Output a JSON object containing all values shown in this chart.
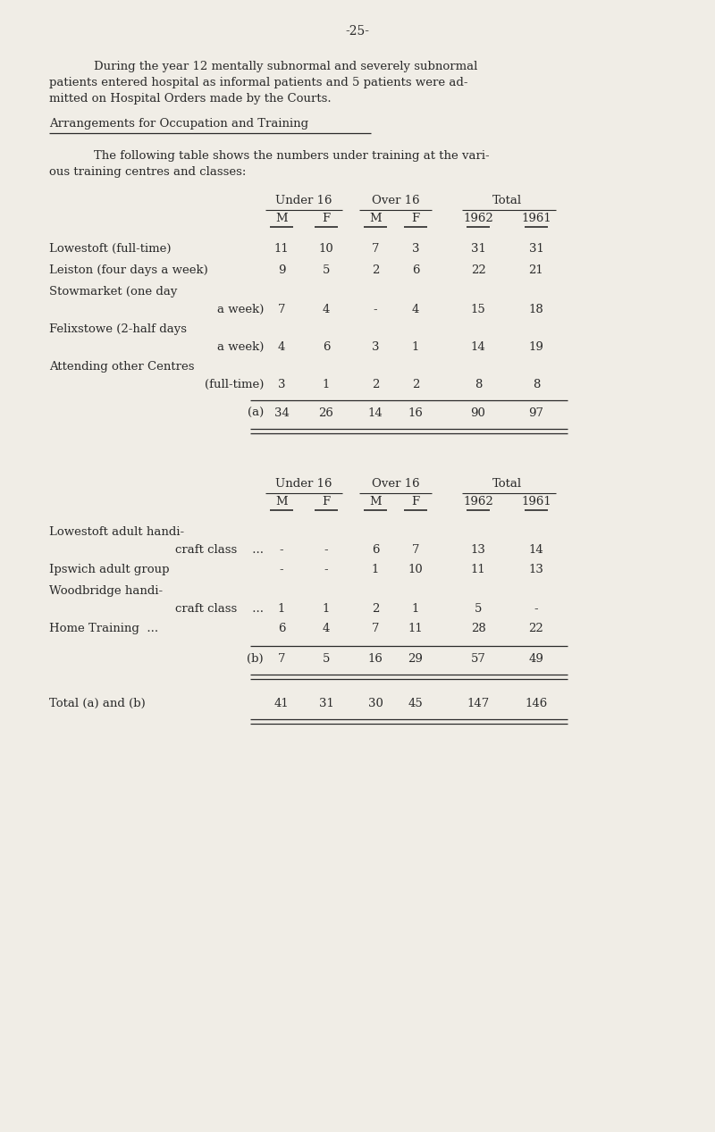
{
  "page_number": "-25-",
  "bg_color": "#f0ede6",
  "text_color": "#2a2a2a",
  "p1_line1": "During the year 12 mentally subnormal and severely subnormal",
  "p1_line2": "patients entered hospital as informal patients and 5 patients were ad-",
  "p1_line3": "mitted on Hospital Orders made by the Courts.",
  "section_heading": "Arrangements for Occupation and Training",
  "p2_line1": "The following table shows the numbers under training at the vari-",
  "p2_line2": "ous training centres and classes:",
  "col_headers_top": [
    "Under 16",
    "Over 16",
    "Total"
  ],
  "col_headers_sub": [
    "M",
    "F",
    "M",
    "F",
    "1962",
    "1961"
  ],
  "table_a_rows": [
    {
      "label1": "Lowestoft (full-time)",
      "label2": "",
      "vals": [
        "11",
        "10",
        "7",
        "3",
        "31",
        "31"
      ]
    },
    {
      "label1": "Leiston (four days a week)",
      "label2": "",
      "vals": [
        "9",
        "5",
        "2",
        "6",
        "22",
        "21"
      ]
    },
    {
      "label1": "Stowmarket (one day",
      "label2": "a week)",
      "vals": [
        "7",
        "4",
        "-",
        "4",
        "15",
        "18"
      ]
    },
    {
      "label1": "Felixstowe (2-half days",
      "label2": "a week)",
      "vals": [
        "4",
        "6",
        "3",
        "1",
        "14",
        "19"
      ]
    },
    {
      "label1": "Attending other Centres",
      "label2": "(full-time)",
      "vals": [
        "3",
        "1",
        "2",
        "2",
        "8",
        "8"
      ]
    }
  ],
  "table_a_total_label": "(a)",
  "table_a_total_vals": [
    "34",
    "26",
    "14",
    "16",
    "90",
    "97"
  ],
  "table_b_rows": [
    {
      "label1": "Lowestoft adult handi-",
      "label2": "craft class    ...",
      "vals": [
        "-",
        "-",
        "6",
        "7",
        "13",
        "14"
      ]
    },
    {
      "label1": "Ipswich adult group",
      "label2": "",
      "vals": [
        "-",
        "-",
        "1",
        "10",
        "11",
        "13"
      ]
    },
    {
      "label1": "Woodbridge handi-",
      "label2": "craft class    ...",
      "vals": [
        "1",
        "1",
        "2",
        "1",
        "5",
        "-"
      ]
    },
    {
      "label1": "Home Training  ...",
      "label2": "",
      "vals": [
        "6",
        "4",
        "7",
        "11",
        "28",
        "22"
      ]
    }
  ],
  "table_b_total_label": "(b)",
  "table_b_total_vals": [
    "7",
    "5",
    "16",
    "29",
    "57",
    "49"
  ],
  "table_ab_label": "Total (a) and (b)",
  "table_ab_vals": [
    "41",
    "31",
    "30",
    "45",
    "147",
    "146"
  ]
}
